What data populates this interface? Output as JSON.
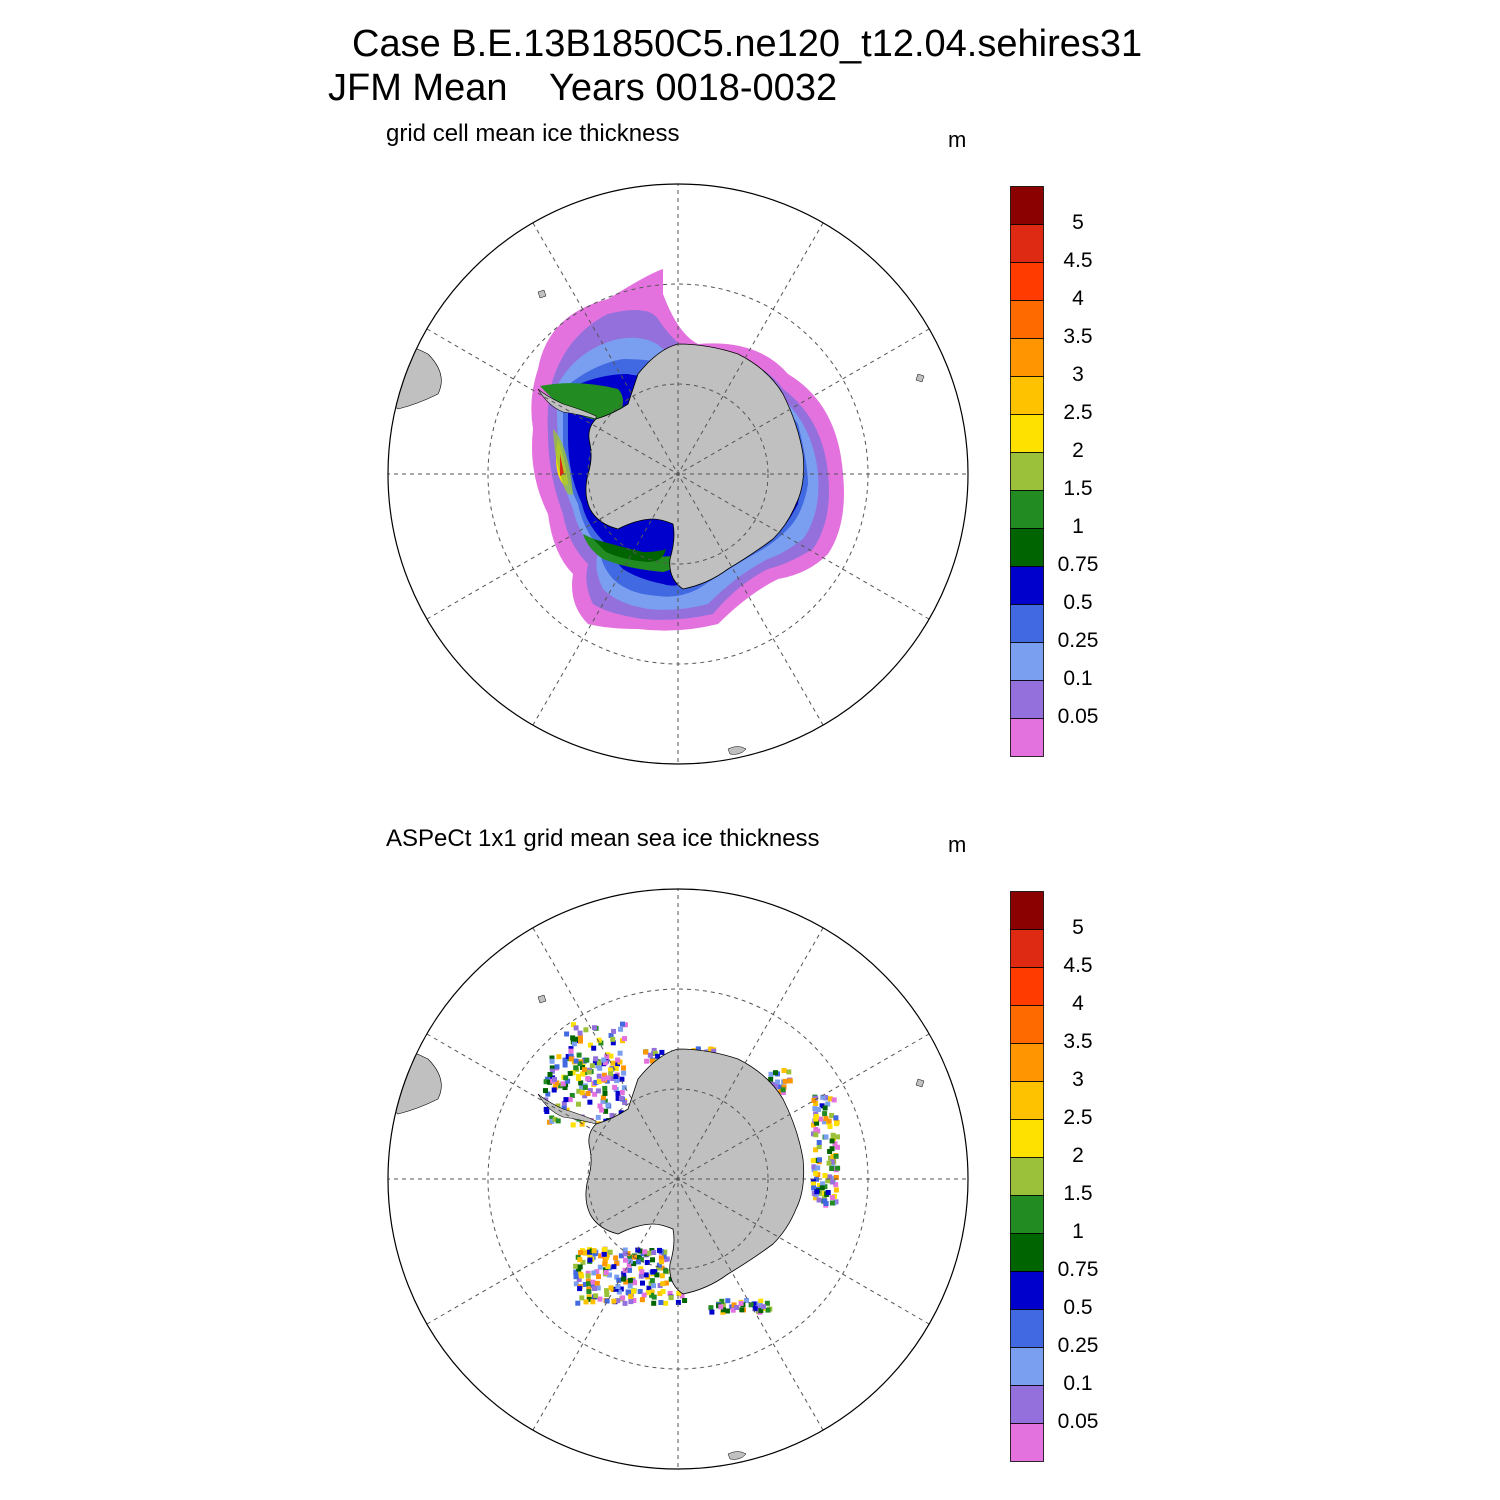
{
  "figure": {
    "title_line1": "Case B.E.13B1850C5.ne120_t12.04.sehires31",
    "title_line2": "JFM Mean    Years 0018-0032"
  },
  "panels": [
    {
      "title": "grid cell mean ice thickness",
      "units": "m"
    },
    {
      "title": "ASPeCt 1x1 grid mean sea ice thickness",
      "units": "m"
    }
  ],
  "colorbar": {
    "labels": [
      "5",
      "4.5",
      "4",
      "3.5",
      "3",
      "2.5",
      "2",
      "1.5",
      "1",
      "0.75",
      "0.5",
      "0.25",
      "0.1",
      "0.05"
    ],
    "colors_top_to_bottom": [
      "#8b0000",
      "#de2a13",
      "#ff3b00",
      "#ff6a00",
      "#ff9500",
      "#ffc200",
      "#ffe100",
      "#9bc13a",
      "#228b22",
      "#006400",
      "#0000cd",
      "#4169e1",
      "#7b9ff0",
      "#9370db",
      "#e372de"
    ]
  },
  "map_style": {
    "land_color": "#c0c0c0",
    "ocean_color": "#ffffff",
    "grid": "dashed"
  }
}
